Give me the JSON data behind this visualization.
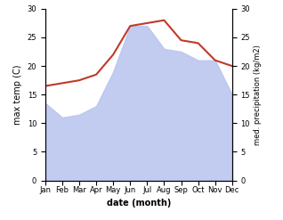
{
  "months": [
    "Jan",
    "Feb",
    "Mar",
    "Apr",
    "May",
    "Jun",
    "Jul",
    "Aug",
    "Sep",
    "Oct",
    "Nov",
    "Dec"
  ],
  "temp": [
    16.5,
    17.0,
    17.5,
    18.5,
    22.0,
    27.0,
    27.5,
    28.0,
    24.5,
    24.0,
    21.0,
    20.0
  ],
  "precip": [
    13.5,
    11.0,
    11.5,
    13.0,
    19.0,
    27.0,
    27.0,
    23.0,
    22.5,
    21.0,
    21.0,
    15.0
  ],
  "temp_color": "#c0392b",
  "precip_fill_color": "#b8c4ee",
  "temp_ylim": [
    0,
    30
  ],
  "precip_ylim": [
    0,
    30
  ],
  "xlabel": "date (month)",
  "ylabel_left": "max temp (C)",
  "ylabel_right": "med. precipitation (kg/m2)",
  "bg_color": "#ffffff"
}
